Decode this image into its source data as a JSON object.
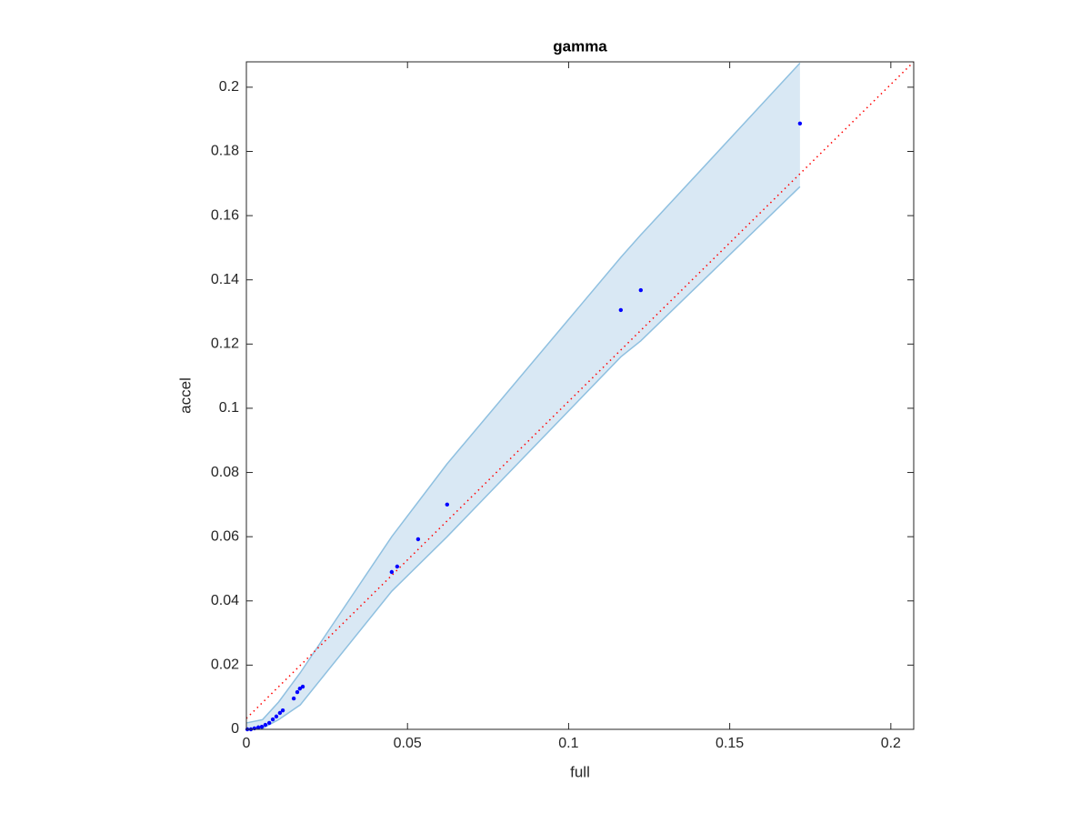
{
  "chart_data": {
    "type": "scatter",
    "title": "gamma",
    "x_label": "full",
    "y_label": "accel",
    "xlim": [
      0,
      0.2071
    ],
    "ylim": [
      0,
      0.2079
    ],
    "xticks": [
      0,
      0.05,
      0.1,
      0.15,
      0.2
    ],
    "yticks": [
      0,
      0.02,
      0.04,
      0.06,
      0.08,
      0.1,
      0.12,
      0.14,
      0.16,
      0.18,
      0.2
    ],
    "band": {
      "color": "#8fc0e0",
      "fill": "#d9e8f4",
      "x": [
        0,
        0.005,
        0.01,
        0.0167,
        0.0451,
        0.0623,
        0.1162,
        0.1224,
        0.1718
      ],
      "upper": [
        0.002,
        0.003,
        0.0085,
        0.0176,
        0.06,
        0.0827,
        0.147,
        0.154,
        0.2075
      ],
      "lower": [
        0,
        0.0003,
        0.003,
        0.0076,
        0.043,
        0.06,
        0.116,
        0.121,
        0.169
      ]
    },
    "reference_line": {
      "color": "#ff0000",
      "x": [
        0,
        0.2071
      ],
      "values": [
        0.0034,
        0.2079
      ]
    },
    "points": {
      "color": "#0000ff",
      "x": [
        0.1718,
        0.1224,
        0.1162,
        0.0623,
        0.0533,
        0.0468,
        0.0451,
        0.0175,
        0.0166,
        0.0158,
        0.0147,
        0.0113,
        0.0104,
        0.0093,
        0.0082,
        0.0071,
        0.0059,
        0.0048,
        0.0037,
        0.0025,
        0.0014,
        0.0003
      ],
      "values": [
        0.1887,
        0.1368,
        0.1306,
        0.07,
        0.0592,
        0.0507,
        0.049,
        0.0133,
        0.0127,
        0.0116,
        0.0096,
        0.0059,
        0.0051,
        0.004,
        0.0031,
        0.002,
        0.0014,
        0.0008,
        0.0006,
        0.0003,
        0,
        0
      ]
    }
  }
}
